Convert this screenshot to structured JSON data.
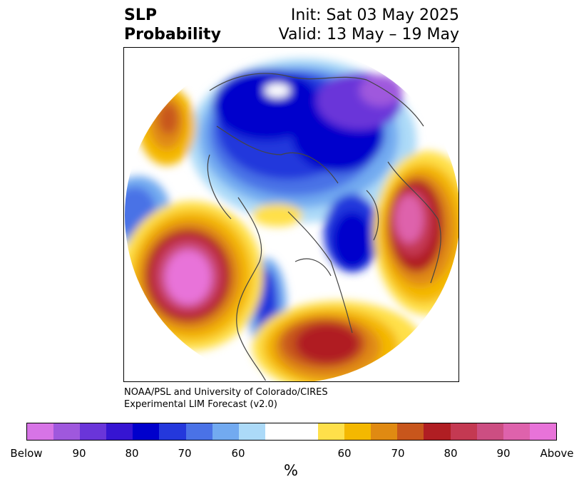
{
  "title": {
    "left_line1": "SLP",
    "left_line2": "Probability",
    "right_line1": "Init: Sat 03 May 2025",
    "right_line2": "Valid: 13 May – 19 May"
  },
  "credit": {
    "line1": "NOAA/PSL and University of Colorado/CIRES",
    "line2": "Experimental LIM Forecast (v2.0)"
  },
  "colorbar": {
    "colors": [
      "#d774e6",
      "#9f58dd",
      "#6a35d9",
      "#3615d2",
      "#0000cc",
      "#2438dc",
      "#4a72e6",
      "#72aaf0",
      "#acdaf8",
      "#ffffff",
      "#ffffff",
      "#ffe04a",
      "#f4b800",
      "#e08a12",
      "#c8561c",
      "#b01e23",
      "#c43952",
      "#cc4e82",
      "#de62ac",
      "#e873d9"
    ],
    "tick_labels": [
      "Below",
      "90",
      "80",
      "70",
      "60",
      "60",
      "70",
      "80",
      "90",
      "Above"
    ],
    "unit": "%"
  },
  "map": {
    "projection": "north polar stereographic",
    "palette": {
      "deep_blue": "#0000cc",
      "purple": "#6a35d9",
      "blue": "#2438dc",
      "mid_blue": "#4a72e6",
      "light_blue": "#72aaf0",
      "pale_blue": "#acdaf8",
      "yellow": "#ffe04a",
      "gold": "#f4b800",
      "orange": "#e08a12",
      "red": "#b01e23",
      "crimson": "#c43952",
      "rose": "#cc4e82",
      "pink": "#de62ac",
      "magenta": "#e873d9"
    }
  }
}
